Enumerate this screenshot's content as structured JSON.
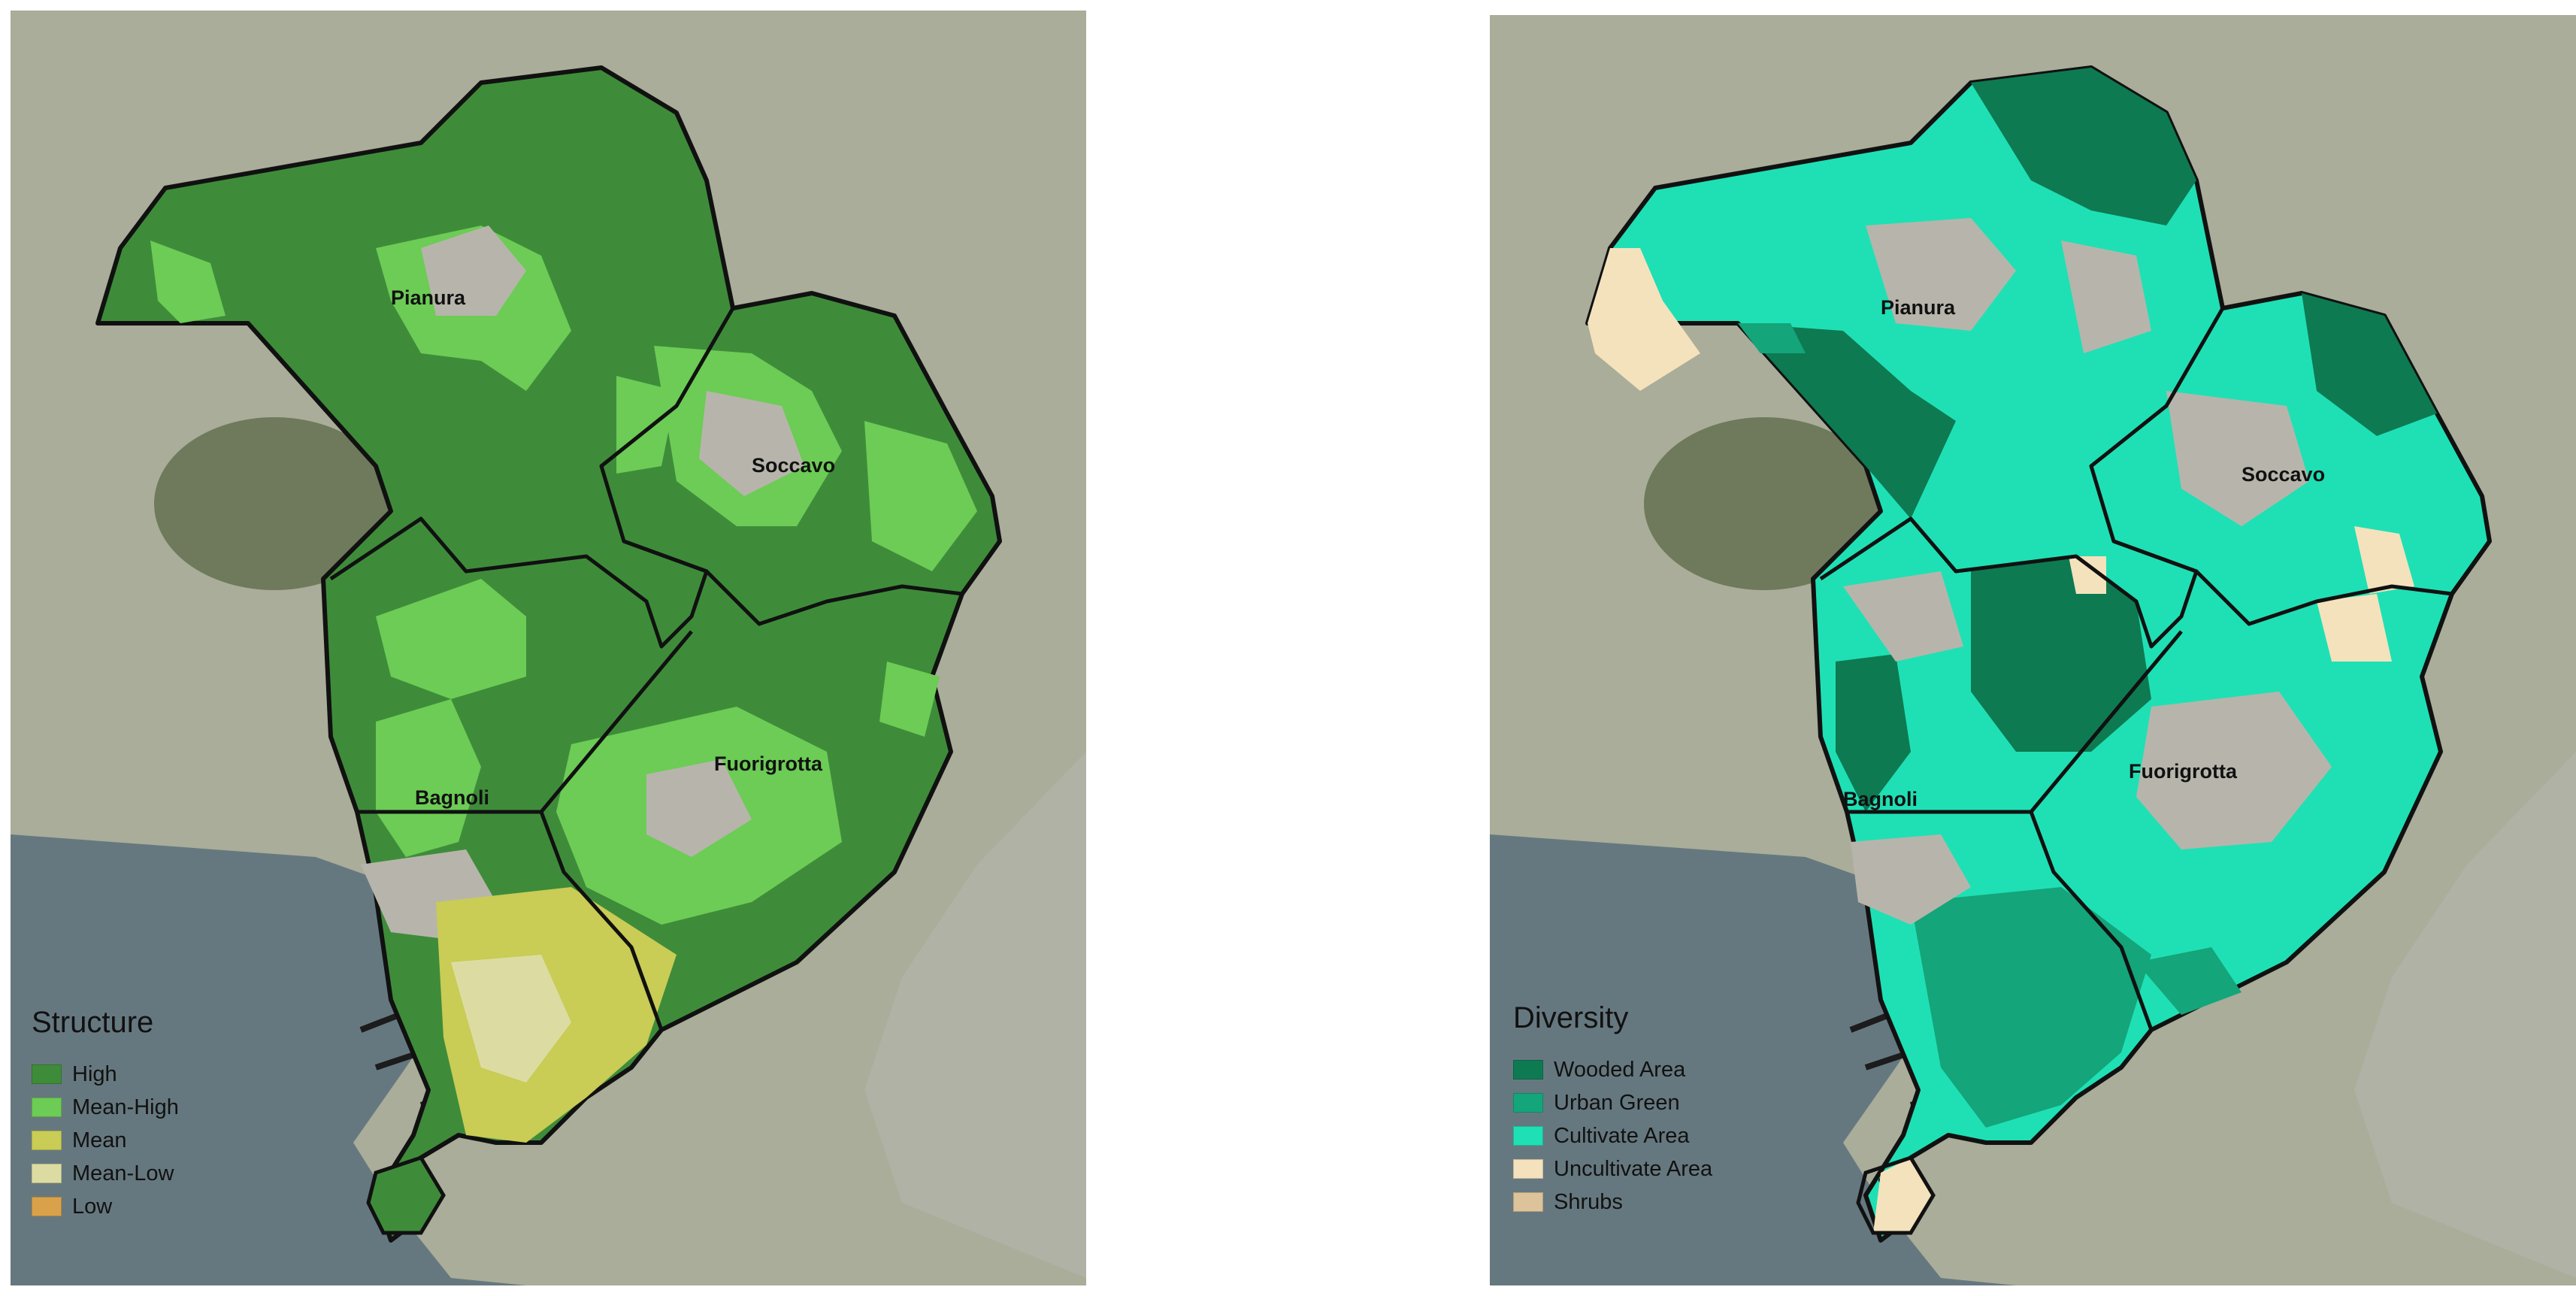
{
  "maps": {
    "left": {
      "districts": [
        {
          "id": "pianura",
          "label": "Pianura"
        },
        {
          "id": "soccavo",
          "label": "Soccavo"
        },
        {
          "id": "bagnoli",
          "label": "Bagnoli"
        },
        {
          "id": "fuorigrotta",
          "label": "Fuorigrotta"
        }
      ],
      "legend": {
        "title": "Structure",
        "items": [
          {
            "label": "High",
            "color": "#3e8c3a"
          },
          {
            "label": "Mean-High",
            "color": "#6ccc55"
          },
          {
            "label": "Mean",
            "color": "#c9cc55"
          },
          {
            "label": "Mean-Low",
            "color": "#dcdca2"
          },
          {
            "label": "Low",
            "color": "#d9a24a"
          }
        ]
      }
    },
    "right": {
      "districts": [
        {
          "id": "pianura",
          "label": "Pianura"
        },
        {
          "id": "soccavo",
          "label": "Soccavo"
        },
        {
          "id": "bagnoli",
          "label": "Bagnoli"
        },
        {
          "id": "fuorigrotta",
          "label": "Fuorigrotta"
        }
      ],
      "legend": {
        "title": "Diversity",
        "items": [
          {
            "label": "Wooded Area",
            "color": "#0d7a52"
          },
          {
            "label": "Urban Green",
            "color": "#14a57a"
          },
          {
            "label": "Cultivate Area",
            "color": "#1fe0b4"
          },
          {
            "label": "Uncultivate Area",
            "color": "#f4e2bd"
          },
          {
            "label": "Shrubs",
            "color": "#dcc39a"
          }
        ]
      }
    }
  },
  "colors": {
    "land": "#a9ad99",
    "sea": "#66787f",
    "urban": "#b7b5ab",
    "crater": "#6e7a5b",
    "boundary": "#111111"
  }
}
